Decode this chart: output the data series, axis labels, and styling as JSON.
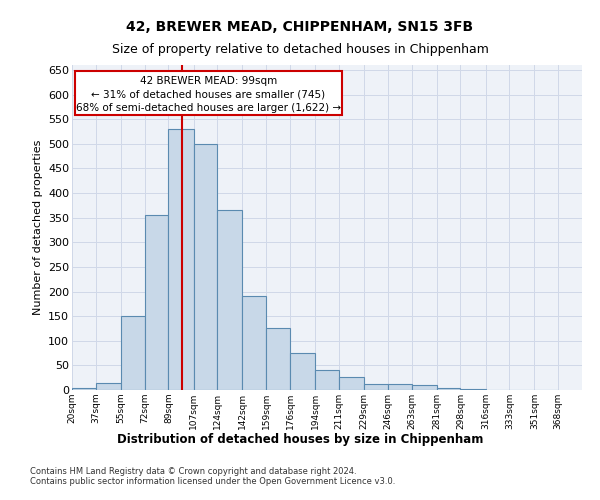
{
  "title1": "42, BREWER MEAD, CHIPPENHAM, SN15 3FB",
  "title2": "Size of property relative to detached houses in Chippenham",
  "xlabel": "Distribution of detached houses by size in Chippenham",
  "ylabel": "Number of detached properties",
  "footnote1": "Contains HM Land Registry data © Crown copyright and database right 2024.",
  "footnote2": "Contains public sector information licensed under the Open Government Licence v3.0.",
  "annotation_title": "42 BREWER MEAD: 99sqm",
  "annotation_line1": "← 31% of detached houses are smaller (745)",
  "annotation_line2": "68% of semi-detached houses are larger (1,622) →",
  "bar_left_edges": [
    20,
    37,
    55,
    72,
    89,
    107,
    124,
    142,
    159,
    176,
    194,
    211,
    229,
    246,
    263,
    281,
    298,
    316,
    333,
    351
  ],
  "bar_widths": [
    17,
    18,
    17,
    17,
    18,
    17,
    18,
    17,
    17,
    18,
    17,
    18,
    17,
    17,
    18,
    17,
    18,
    17,
    18,
    17
  ],
  "bar_heights": [
    5,
    15,
    150,
    355,
    530,
    500,
    365,
    190,
    125,
    75,
    40,
    27,
    13,
    13,
    10,
    5,
    3,
    1,
    1,
    1
  ],
  "bar_color": "#c8d8e8",
  "bar_edge_color": "#5a8ab0",
  "bar_edge_width": 0.8,
  "red_line_x": 99,
  "red_line_color": "#cc0000",
  "ylim": [
    0,
    660
  ],
  "yticks": [
    0,
    50,
    100,
    150,
    200,
    250,
    300,
    350,
    400,
    450,
    500,
    550,
    600,
    650
  ],
  "xtick_labels": [
    "20sqm",
    "37sqm",
    "55sqm",
    "72sqm",
    "89sqm",
    "107sqm",
    "124sqm",
    "142sqm",
    "159sqm",
    "176sqm",
    "194sqm",
    "211sqm",
    "229sqm",
    "246sqm",
    "263sqm",
    "281sqm",
    "298sqm",
    "316sqm",
    "333sqm",
    "351sqm",
    "368sqm"
  ],
  "xtick_positions": [
    20,
    37,
    55,
    72,
    89,
    107,
    124,
    142,
    159,
    176,
    194,
    211,
    229,
    246,
    263,
    281,
    298,
    316,
    333,
    351,
    368
  ],
  "grid_color": "#d0d8e8",
  "bg_color": "#eef2f8",
  "title1_fontsize": 10,
  "title2_fontsize": 9
}
